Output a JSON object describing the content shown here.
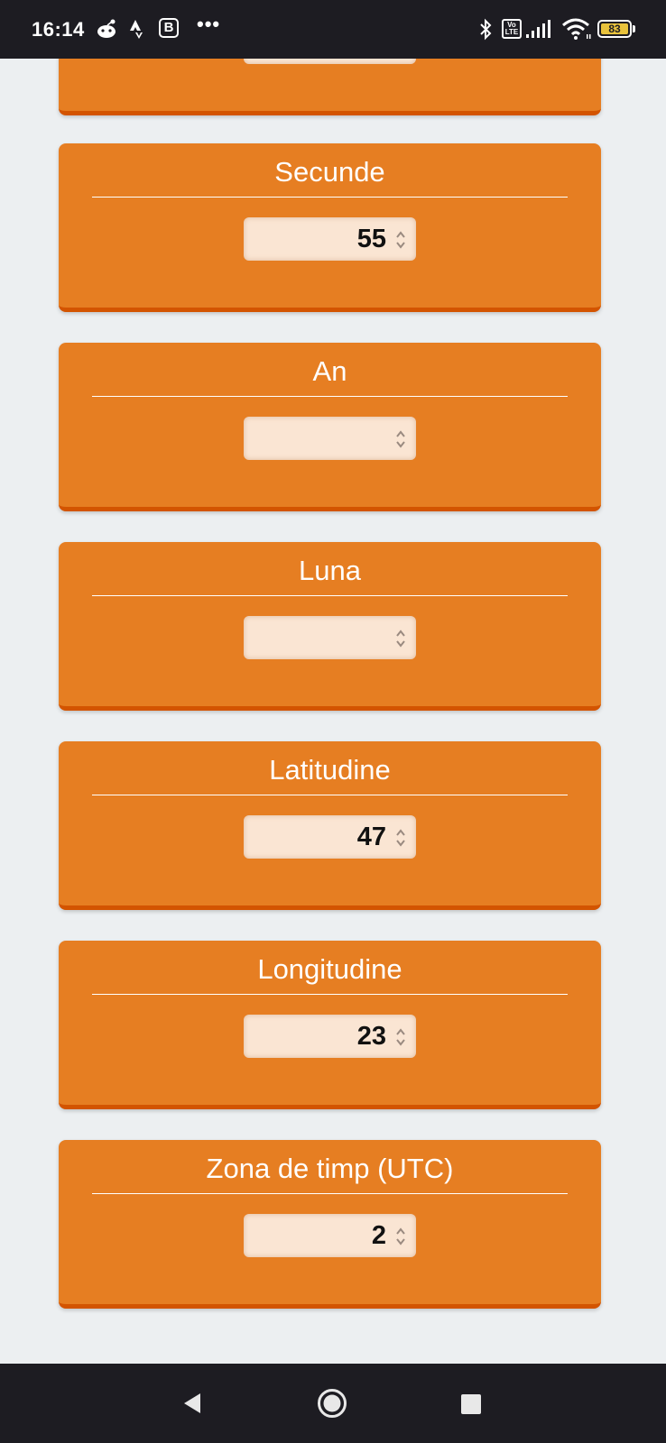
{
  "status_bar": {
    "time": "16:14",
    "b_badge": "B",
    "more_dots": "•••",
    "volte_label": "Vo LTE",
    "battery_level": "83",
    "icons": [
      "reddit-icon",
      "strava-icon",
      "bluetooth-icon",
      "signal-icon",
      "wifi-icon",
      "battery-icon"
    ]
  },
  "cards": [
    {
      "title": "",
      "value": ""
    },
    {
      "title": "Secunde",
      "value": "55"
    },
    {
      "title": "An",
      "value": ""
    },
    {
      "title": "Luna",
      "value": ""
    },
    {
      "title": "Latitudine",
      "value": "47"
    },
    {
      "title": "Longitudine",
      "value": "23"
    },
    {
      "title": "Zona de timp (UTC)",
      "value": "2"
    }
  ],
  "nav": {
    "icons": [
      "back-icon",
      "home-icon",
      "recents-icon"
    ]
  },
  "colors": {
    "card": "#e67e22",
    "card_border": "#d35400",
    "input_bg": "#fae5d3",
    "page_bg": "#eceff1",
    "system_bar": "#1d1c22"
  }
}
